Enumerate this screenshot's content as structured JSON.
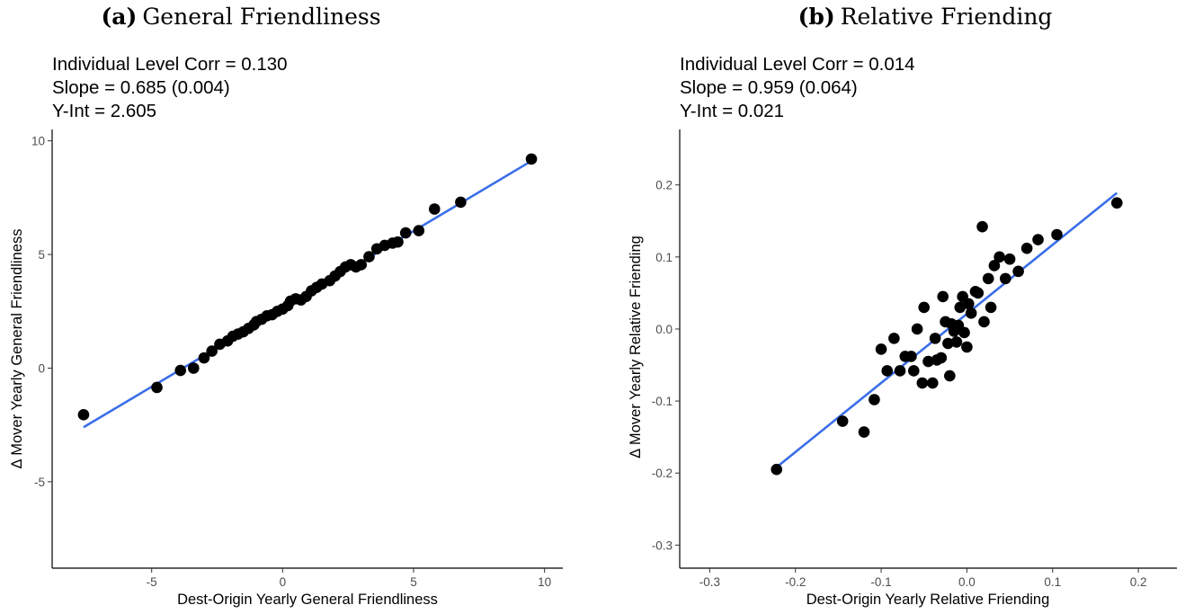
{
  "chart_data": [
    {
      "type": "scatter",
      "caption_tag": "(a)",
      "caption_text": "General Friendliness",
      "annotations": [
        "Individual Level Corr = 0.130",
        "Slope = 0.685 (0.004)",
        "Y-Int = 2.605"
      ],
      "xlabel": "Dest-Origin Yearly General Friendliness",
      "ylabel": "Δ Mover Yearly General Friendliness",
      "xlim": [
        -8.8,
        10.7
      ],
      "ylim": [
        -8.8,
        10.5
      ],
      "xticks": [
        -5,
        0,
        5,
        10
      ],
      "yticks": [
        -5,
        0,
        5,
        10
      ],
      "xtick_labels": [
        "-5",
        "0",
        "5",
        "10"
      ],
      "ytick_labels": [
        "-5",
        "0",
        "5",
        "10"
      ],
      "grid": false,
      "fit_line": {
        "slope": 0.685,
        "intercept": 2.605,
        "x_range": [
          -7.6,
          9.4
        ],
        "color": "#3a6ee8"
      },
      "point_color": "#000000",
      "points": [
        [
          -7.6,
          -2.05
        ],
        [
          -4.8,
          -0.85
        ],
        [
          -3.9,
          -0.1
        ],
        [
          -3.4,
          0.0
        ],
        [
          -3.0,
          0.45
        ],
        [
          -2.7,
          0.75
        ],
        [
          -2.4,
          1.05
        ],
        [
          -2.1,
          1.2
        ],
        [
          -1.9,
          1.4
        ],
        [
          -1.7,
          1.5
        ],
        [
          -1.5,
          1.6
        ],
        [
          -1.3,
          1.75
        ],
        [
          -1.1,
          1.9
        ],
        [
          -1.0,
          2.05
        ],
        [
          -0.8,
          2.15
        ],
        [
          -0.6,
          2.3
        ],
        [
          -0.4,
          2.35
        ],
        [
          -0.2,
          2.5
        ],
        [
          0.0,
          2.6
        ],
        [
          0.2,
          2.75
        ],
        [
          0.3,
          2.95
        ],
        [
          0.5,
          3.05
        ],
        [
          0.7,
          3.0
        ],
        [
          0.9,
          3.15
        ],
        [
          1.1,
          3.4
        ],
        [
          1.3,
          3.55
        ],
        [
          1.5,
          3.7
        ],
        [
          1.8,
          3.85
        ],
        [
          2.0,
          4.05
        ],
        [
          2.2,
          4.25
        ],
        [
          2.4,
          4.45
        ],
        [
          2.6,
          4.55
        ],
        [
          2.8,
          4.45
        ],
        [
          3.0,
          4.55
        ],
        [
          3.3,
          4.9
        ],
        [
          3.6,
          5.25
        ],
        [
          3.9,
          5.4
        ],
        [
          4.2,
          5.5
        ],
        [
          4.4,
          5.55
        ],
        [
          4.7,
          5.95
        ],
        [
          5.2,
          6.05
        ],
        [
          5.8,
          7.0
        ],
        [
          6.8,
          7.3
        ],
        [
          9.5,
          9.2
        ]
      ]
    },
    {
      "type": "scatter",
      "caption_tag": "(b)",
      "caption_text": "Relative Friending",
      "annotations": [
        "Individual Level Corr = 0.014",
        "Slope = 0.959 (0.064)",
        "Y-Int = 0.021"
      ],
      "xlabel": "Dest-Origin Yearly Relative Friending",
      "ylabel": "Δ Mover Yearly Relative Friending",
      "xlim": [
        -0.335,
        0.245
      ],
      "ylim": [
        -0.332,
        0.277
      ],
      "xticks": [
        -0.3,
        -0.2,
        -0.1,
        0.0,
        0.1,
        0.2
      ],
      "yticks": [
        -0.3,
        -0.2,
        -0.1,
        0.0,
        0.1,
        0.2
      ],
      "xtick_labels": [
        "-0.3",
        "-0.2",
        "-0.1",
        "0.0",
        "0.1",
        "0.2"
      ],
      "ytick_labels": [
        "-0.3",
        "-0.2",
        "-0.1",
        "0.0",
        "0.1",
        "0.2"
      ],
      "grid": false,
      "fit_line": {
        "slope": 0.959,
        "intercept": 0.021,
        "x_range": [
          -0.222,
          0.175
        ],
        "color": "#3a6ee8"
      },
      "point_color": "#000000",
      "points": [
        [
          -0.222,
          -0.195
        ],
        [
          -0.145,
          -0.128
        ],
        [
          -0.12,
          -0.143
        ],
        [
          -0.108,
          -0.098
        ],
        [
          -0.1,
          -0.028
        ],
        [
          -0.093,
          -0.058
        ],
        [
          -0.085,
          -0.013
        ],
        [
          -0.078,
          -0.058
        ],
        [
          -0.072,
          -0.038
        ],
        [
          -0.065,
          -0.038
        ],
        [
          -0.062,
          -0.058
        ],
        [
          -0.058,
          0.0
        ],
        [
          -0.052,
          -0.075
        ],
        [
          -0.05,
          0.03
        ],
        [
          -0.045,
          -0.045
        ],
        [
          -0.04,
          -0.075
        ],
        [
          -0.037,
          -0.013
        ],
        [
          -0.035,
          -0.043
        ],
        [
          -0.03,
          -0.04
        ],
        [
          -0.028,
          0.045
        ],
        [
          -0.025,
          0.01
        ],
        [
          -0.022,
          -0.02
        ],
        [
          -0.02,
          -0.065
        ],
        [
          -0.018,
          0.007
        ],
        [
          -0.015,
          -0.003
        ],
        [
          -0.012,
          -0.018
        ],
        [
          -0.01,
          0.005
        ],
        [
          -0.008,
          0.03
        ],
        [
          -0.005,
          0.045
        ],
        [
          -0.003,
          -0.005
        ],
        [
          0.0,
          -0.025
        ],
        [
          0.002,
          0.035
        ],
        [
          0.005,
          0.022
        ],
        [
          0.01,
          0.052
        ],
        [
          0.013,
          0.05
        ],
        [
          0.018,
          0.142
        ],
        [
          0.02,
          0.01
        ],
        [
          0.025,
          0.07
        ],
        [
          0.028,
          0.03
        ],
        [
          0.032,
          0.088
        ],
        [
          0.038,
          0.1
        ],
        [
          0.045,
          0.07
        ],
        [
          0.05,
          0.097
        ],
        [
          0.06,
          0.08
        ],
        [
          0.07,
          0.112
        ],
        [
          0.083,
          0.124
        ],
        [
          0.105,
          0.131
        ],
        [
          0.175,
          0.175
        ]
      ]
    }
  ]
}
